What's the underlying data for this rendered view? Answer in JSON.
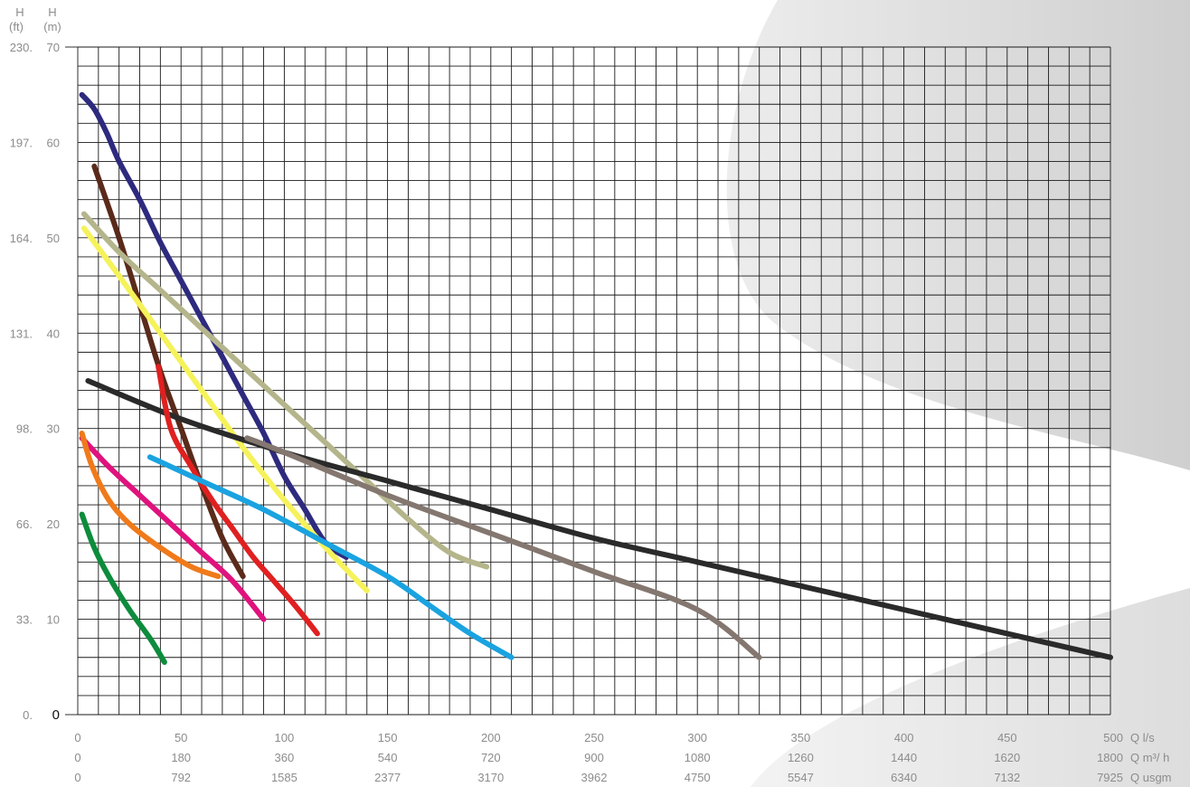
{
  "chart_data": {
    "type": "line",
    "title": "",
    "x_primary": {
      "unit_label": "Q l/s",
      "ticks": [
        0,
        50,
        100,
        150,
        200,
        250,
        300,
        350,
        400,
        450,
        500
      ]
    },
    "x_secondary": {
      "unit_label": "Q m³/ h",
      "ticks": [
        "0",
        "180",
        "360",
        "540",
        "720",
        "900",
        "1080",
        "1260",
        "1440",
        "1620",
        "1800"
      ]
    },
    "x_tertiary": {
      "unit_label": "Q usgm",
      "ticks": [
        "0",
        "792",
        "1585",
        "2377",
        "3170",
        "3962",
        "4750",
        "5547",
        "6340",
        "7132",
        "7925"
      ]
    },
    "y_primary": {
      "unit_label": "H",
      "unit_sub": "(m)",
      "ticks": [
        0,
        10,
        20,
        30,
        40,
        50,
        60,
        70
      ]
    },
    "y_secondary": {
      "unit_label": "H",
      "unit_sub": "(ft)",
      "ticks": [
        "0.",
        "33.",
        "66.",
        "98.",
        "131.",
        "164.",
        "197.",
        "230."
      ]
    },
    "xlim": [
      0,
      500
    ],
    "ylim": [
      0,
      70
    ],
    "grid": true,
    "series": [
      {
        "color": "#2e2a7e",
        "x": [
          2,
          8,
          14,
          20,
          30,
          40,
          50,
          60,
          70,
          80,
          90,
          100,
          110,
          120,
          130
        ],
        "y": [
          65,
          63.5,
          61,
          58,
          54,
          49.5,
          45.5,
          41.5,
          37.5,
          33.5,
          29.5,
          25,
          21.5,
          18,
          16.5
        ]
      },
      {
        "color": "#5a2a1a",
        "x": [
          8,
          20,
          30,
          40,
          50,
          60,
          70,
          80
        ],
        "y": [
          57.5,
          50,
          43,
          36,
          30,
          24,
          18.5,
          14.5
        ]
      },
      {
        "color": "#b5b58c",
        "x": [
          3,
          20,
          40,
          60,
          80,
          100,
          120,
          140,
          160,
          180,
          198
        ],
        "y": [
          52.5,
          48.5,
          44.5,
          40.5,
          36.5,
          32.5,
          28.5,
          24.5,
          20.5,
          17,
          15.5
        ]
      },
      {
        "color": "#f5f25a",
        "x": [
          3,
          20,
          40,
          60,
          80,
          100,
          120,
          140
        ],
        "y": [
          51,
          46,
          40,
          34,
          28,
          22.5,
          17.5,
          13
        ]
      },
      {
        "color": "#2a2a2a",
        "x": [
          5,
          50,
          100,
          150,
          200,
          250,
          300,
          350,
          400,
          450,
          500
        ],
        "y": [
          35,
          31,
          27.5,
          24.5,
          21.5,
          18.5,
          16,
          13.5,
          11,
          8.5,
          6
        ]
      },
      {
        "color": "#847770",
        "x": [
          82,
          100,
          150,
          200,
          250,
          300,
          330
        ],
        "y": [
          29,
          27.5,
          23,
          19,
          15,
          11,
          6
        ]
      },
      {
        "color": "#e02020",
        "x": [
          39,
          45,
          55,
          65,
          75,
          85,
          95,
          105,
          116
        ],
        "y": [
          36.5,
          30,
          26,
          22.5,
          19.5,
          16.5,
          14,
          11.5,
          8.5
        ]
      },
      {
        "color": "#1aa3e0",
        "x": [
          35,
          60,
          90,
          120,
          150,
          170,
          190,
          210
        ],
        "y": [
          27,
          24.5,
          21.5,
          18,
          14.5,
          11.5,
          8.5,
          6
        ]
      },
      {
        "color": "#e0127d",
        "x": [
          2,
          15,
          30,
          45,
          60,
          75,
          90
        ],
        "y": [
          29,
          26,
          23,
          20,
          17,
          14,
          10
        ]
      },
      {
        "color": "#f07a1a",
        "x": [
          2,
          7,
          15,
          25,
          40,
          55,
          68
        ],
        "y": [
          29.5,
          26,
          22.5,
          20,
          17.5,
          15.5,
          14.5
        ]
      },
      {
        "color": "#0d8c3c",
        "x": [
          2,
          8,
          15,
          25,
          35,
          42
        ],
        "y": [
          21,
          17.5,
          14.5,
          11,
          8,
          5.5
        ]
      }
    ]
  }
}
